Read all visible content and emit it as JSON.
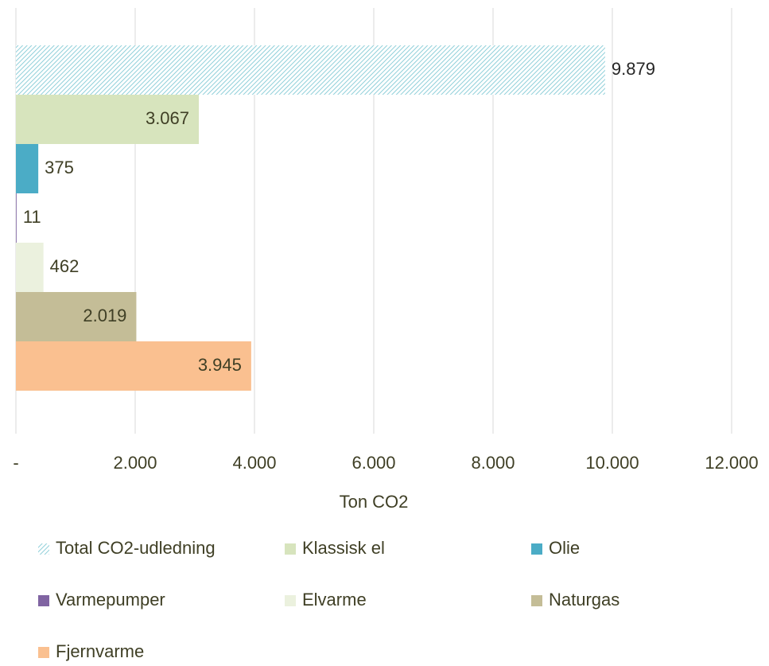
{
  "chart_data": {
    "type": "bar",
    "orientation": "horizontal",
    "xlabel": "Ton CO2",
    "xlim": [
      0,
      12000
    ],
    "xticks": [
      {
        "value": 0,
        "label": "-"
      },
      {
        "value": 2000,
        "label": "2.000"
      },
      {
        "value": 4000,
        "label": "4.000"
      },
      {
        "value": 6000,
        "label": "6.000"
      },
      {
        "value": 8000,
        "label": "8.000"
      },
      {
        "value": 10000,
        "label": "10.000"
      },
      {
        "value": 12000,
        "label": "12.000"
      }
    ],
    "grid": true,
    "legend": "bottom",
    "series": [
      {
        "name": "Total CO2-udledning",
        "color": "#8fcfd9",
        "pattern": "hatch",
        "values": [
          9879
        ],
        "value_labels": [
          "9.879"
        ]
      },
      {
        "name": "Klassisk el",
        "color": "#d7e4bd",
        "values": [
          3067
        ],
        "value_labels": [
          "3.067"
        ]
      },
      {
        "name": "Olie",
        "color": "#4bacc6",
        "values": [
          375
        ]
      },
      {
        "name": "Varmepumper",
        "color": "#8064a2",
        "values": [
          11
        ]
      },
      {
        "name": "Elvarme",
        "color": "#ebf1de",
        "values": [
          462
        ]
      },
      {
        "name": "Naturgas",
        "color": "#c4bd97",
        "values": [
          2019
        ],
        "value_labels": [
          "2.019"
        ]
      },
      {
        "name": "Fjernvarme",
        "color": "#fac090",
        "values": [
          3945
        ],
        "value_labels": [
          "3.945"
        ]
      }
    ]
  }
}
